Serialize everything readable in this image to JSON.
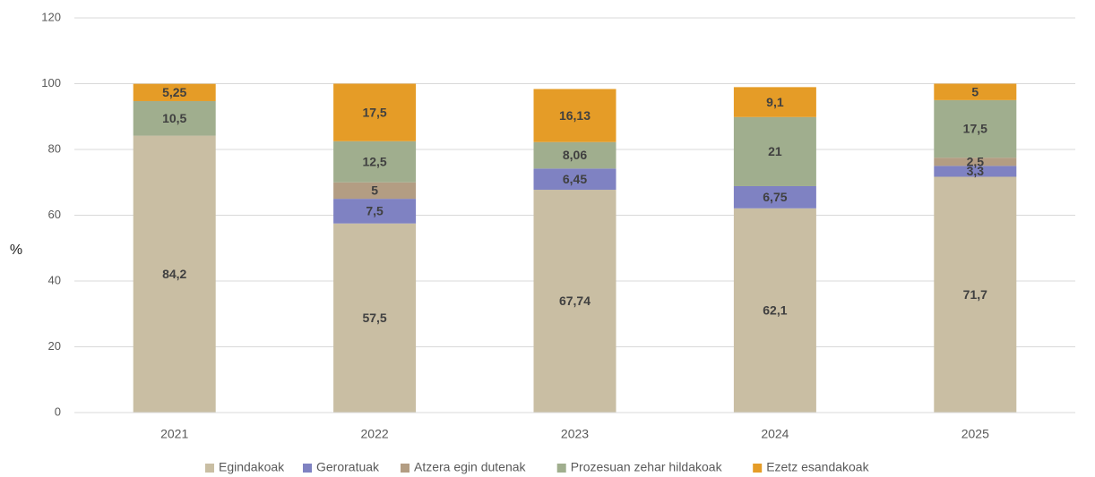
{
  "chart_data": {
    "type": "stacked_bar",
    "y_label": "%",
    "categories": [
      "2021",
      "2022",
      "2023",
      "2024",
      "2025"
    ],
    "series": [
      {
        "name": "Egindakoak",
        "color": "#c9bea3",
        "values": [
          84.2,
          57.5,
          67.74,
          62.1,
          71.7
        ],
        "value_labels": [
          "84,2",
          "57,5",
          "67,74",
          "62,1",
          "71,7"
        ]
      },
      {
        "name": "Geroratuak",
        "color": "#7f82c2",
        "values": [
          null,
          7.5,
          6.45,
          6.75,
          3.3
        ],
        "value_labels": [
          null,
          "7,5",
          "6,45",
          "6,75",
          "3,3"
        ]
      },
      {
        "name": "Atzera egin dutenak",
        "color": "#b39d83",
        "values": [
          null,
          5,
          null,
          null,
          2.5
        ],
        "value_labels": [
          null,
          "5",
          null,
          null,
          "2,5"
        ]
      },
      {
        "name": "Prozesuan zehar hildakoak",
        "color": "#a0ae8e",
        "values": [
          10.5,
          12.5,
          8.06,
          21,
          17.5
        ],
        "value_labels": [
          "10,5",
          "12,5",
          "8,06",
          "21",
          "17,5"
        ]
      },
      {
        "name": "Ezetz esandakoak",
        "color": "#e59c27",
        "values": [
          5.25,
          17.5,
          16.13,
          9.1,
          5
        ],
        "value_labels": [
          "5,25",
          "17,5",
          "16,13",
          "9,1",
          "5"
        ]
      }
    ],
    "ylim": [
      0,
      120
    ],
    "yticks": [
      0,
      20,
      40,
      60,
      80,
      100,
      120
    ],
    "grid": true,
    "legend": "bottom"
  }
}
